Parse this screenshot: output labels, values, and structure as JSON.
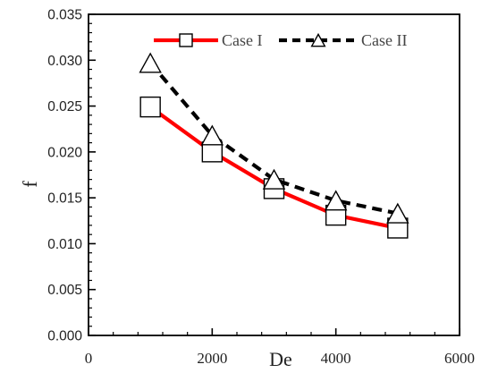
{
  "chart_data": {
    "type": "line",
    "title": "",
    "xlabel": "De",
    "ylabel": "f",
    "xlim": [
      0,
      6000
    ],
    "ylim": [
      0,
      0.035
    ],
    "x_ticks": [
      "0",
      "2000",
      "4000",
      "6000"
    ],
    "y_ticks": [
      "0.000",
      "0.005",
      "0.010",
      "0.015",
      "0.020",
      "0.025",
      "0.030",
      "0.035"
    ],
    "grid": false,
    "legend_position": "top",
    "series": [
      {
        "name": "Case I",
        "color": "#ff0000",
        "line_style": "solid",
        "marker": "square",
        "x": [
          1000,
          2000,
          3000,
          4000,
          5000
        ],
        "y": [
          0.0249,
          0.02,
          0.016,
          0.0131,
          0.0117
        ]
      },
      {
        "name": "Case II",
        "color": "#000000",
        "line_style": "dashed",
        "marker": "triangle",
        "x": [
          1000,
          2000,
          3000,
          4000,
          5000
        ],
        "y": [
          0.0297,
          0.0218,
          0.017,
          0.0147,
          0.0133
        ]
      }
    ]
  }
}
